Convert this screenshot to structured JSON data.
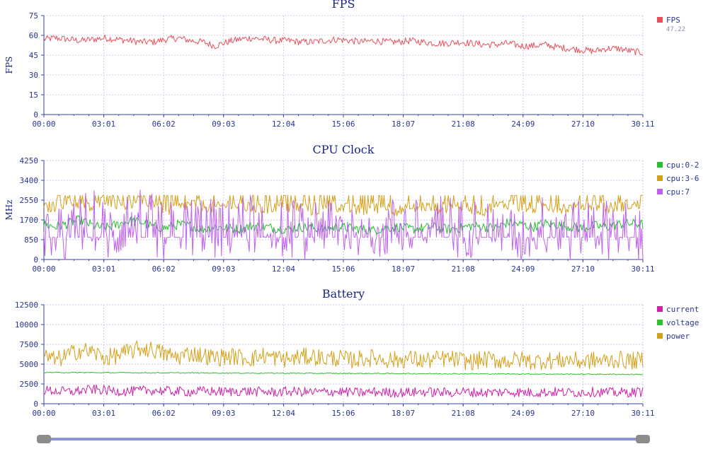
{
  "colors": {
    "axis": "#3a45a0",
    "grid": "#c8cce8",
    "tick_text": "#2a3590",
    "title_text": "#1a2580",
    "legend_value": "#8c8cb0"
  },
  "slider": {
    "start_fraction": 0.0,
    "end_fraction": 1.0
  },
  "chart_data": [
    {
      "type": "line",
      "title": "FPS",
      "ylabel": "FPS",
      "xlabel": "",
      "ylim": [
        0,
        75
      ],
      "yticks": [
        0,
        15,
        30,
        45,
        60,
        75
      ],
      "xticks": [
        "00:00",
        "03:01",
        "06:02",
        "09:03",
        "12:04",
        "15:06",
        "18:07",
        "21:08",
        "24:09",
        "27:10",
        "30:11"
      ],
      "grid": true,
      "legend_position": "right",
      "series": [
        {
          "name": "FPS",
          "legend_value": "47.22",
          "color": "#e8505b",
          "values": [
            57,
            58,
            57,
            56,
            57,
            58,
            57,
            56,
            55,
            55,
            57,
            58,
            56,
            55,
            52,
            55,
            57,
            58,
            57,
            56,
            56,
            55,
            55,
            56,
            57,
            56,
            55,
            56,
            55,
            55,
            56,
            55,
            54,
            54,
            55,
            54,
            53,
            53,
            54,
            52,
            52,
            53,
            51,
            50,
            49,
            48,
            50,
            50,
            48,
            47
          ]
        }
      ]
    },
    {
      "type": "line",
      "title": "CPU Clock",
      "ylabel": "MHz",
      "xlabel": "",
      "ylim": [
        0,
        4250
      ],
      "yticks": [
        0,
        850,
        1700,
        2550,
        3400,
        4250
      ],
      "xticks": [
        "00:00",
        "03:01",
        "06:02",
        "09:03",
        "12:04",
        "15:06",
        "18:07",
        "21:08",
        "24:09",
        "27:10",
        "30:11"
      ],
      "grid": true,
      "legend_position": "right",
      "series": [
        {
          "name": "cpu:0-2",
          "color": "#22c02a",
          "values": [
            1500,
            1400,
            1550,
            1700,
            1450,
            1350,
            1500,
            1650,
            1600,
            1400,
            1350,
            1500,
            1450,
            1300,
            1400,
            1350,
            1300,
            1450,
            1400,
            1350,
            1300,
            1400,
            1350,
            1300,
            1400,
            1350,
            1300,
            1250,
            1350,
            1400,
            1300,
            1350,
            1400,
            1300,
            1350,
            1450,
            1400,
            1350,
            1600,
            1500,
            1400,
            1550,
            1500,
            1400,
            1350,
            1450,
            1400,
            1500,
            1550,
            1500
          ]
        },
        {
          "name": "cpu:3-6",
          "color": "#d4a017",
          "values": [
            2200,
            2300,
            2500,
            2400,
            2200,
            2600,
            2400,
            2300,
            2500,
            2450,
            2100,
            2200,
            2400,
            2300,
            2200,
            2350,
            2300,
            2200,
            2100,
            2300,
            2200,
            2250,
            2100,
            2200,
            2300,
            2150,
            2100,
            2200,
            2250,
            2100,
            2150,
            2300,
            2200,
            2250,
            2300,
            2200,
            2100,
            2300,
            2400,
            2250,
            2200,
            2300,
            2250,
            2200,
            2300,
            2350,
            2200,
            2300,
            2350,
            2300
          ]
        },
        {
          "name": "cpu:7",
          "color": "#c060f0",
          "values": [
            1300,
            950,
            950,
            1500,
            1800,
            1200,
            1100,
            2000,
            1700,
            1500,
            950,
            1600,
            1400,
            1500,
            1300,
            1200,
            1400,
            1600,
            1500,
            1300,
            1400,
            1200,
            1500,
            1600,
            1400,
            1300,
            1500,
            1400,
            1300,
            1500,
            1400,
            1200,
            1500,
            1600,
            1300,
            1400,
            1500,
            1300,
            1100,
            950,
            1400,
            1500,
            1300,
            1200,
            1400,
            1500,
            1300,
            1400,
            1200,
            950
          ]
        }
      ]
    },
    {
      "type": "line",
      "title": "Battery",
      "ylabel": "",
      "xlabel": "",
      "ylim": [
        0,
        12500
      ],
      "yticks": [
        0,
        2500,
        5000,
        7500,
        10000,
        12500
      ],
      "xticks": [
        "00:00",
        "03:01",
        "06:02",
        "09:03",
        "12:04",
        "15:06",
        "18:07",
        "21:08",
        "24:09",
        "27:10",
        "30:11"
      ],
      "grid": true,
      "legend_position": "right",
      "series": [
        {
          "name": "current",
          "color": "#d020a8",
          "values": [
            1700,
            1600,
            1500,
            1650,
            1800,
            1700,
            1600,
            1550,
            1650,
            1700,
            1600,
            1550,
            1500,
            1600,
            1550,
            1500,
            1600,
            1550,
            1500,
            1450,
            1550,
            1500,
            1450,
            1500,
            1550,
            1450,
            1400,
            1500,
            1450,
            1400,
            1450,
            1500,
            1450,
            1400,
            1500,
            1450,
            1400,
            1450,
            1500,
            1450,
            1400,
            1450,
            1500,
            1400,
            1450,
            1500,
            1450,
            1400,
            1450,
            1500
          ]
        },
        {
          "name": "voltage",
          "color": "#2cc22c",
          "values": [
            3950,
            3950,
            3940,
            3940,
            3930,
            3930,
            3920,
            3920,
            3910,
            3910,
            3900,
            3900,
            3890,
            3890,
            3880,
            3880,
            3870,
            3870,
            3860,
            3860,
            3850,
            3850,
            3840,
            3840,
            3830,
            3830,
            3820,
            3820,
            3810,
            3810,
            3800,
            3800,
            3790,
            3790,
            3780,
            3780,
            3770,
            3770,
            3760,
            3760,
            3750,
            3750,
            3740,
            3740,
            3730,
            3730,
            3720,
            3720,
            3710,
            3700
          ]
        },
        {
          "name": "power",
          "color": "#d4a017",
          "values": [
            6000,
            5500,
            6200,
            6800,
            6500,
            5800,
            6100,
            6600,
            7000,
            6800,
            6200,
            5900,
            6400,
            6100,
            5800,
            6000,
            5900,
            5700,
            6100,
            5800,
            5600,
            5900,
            6000,
            5700,
            5800,
            5500,
            5700,
            5800,
            5600,
            5500,
            5700,
            5400,
            5600,
            5700,
            5500,
            5300,
            5600,
            5500,
            5400,
            5600,
            5300,
            5500,
            5400,
            5600,
            5300,
            5500,
            5400,
            5600,
            5400,
            5500
          ]
        }
      ]
    }
  ]
}
